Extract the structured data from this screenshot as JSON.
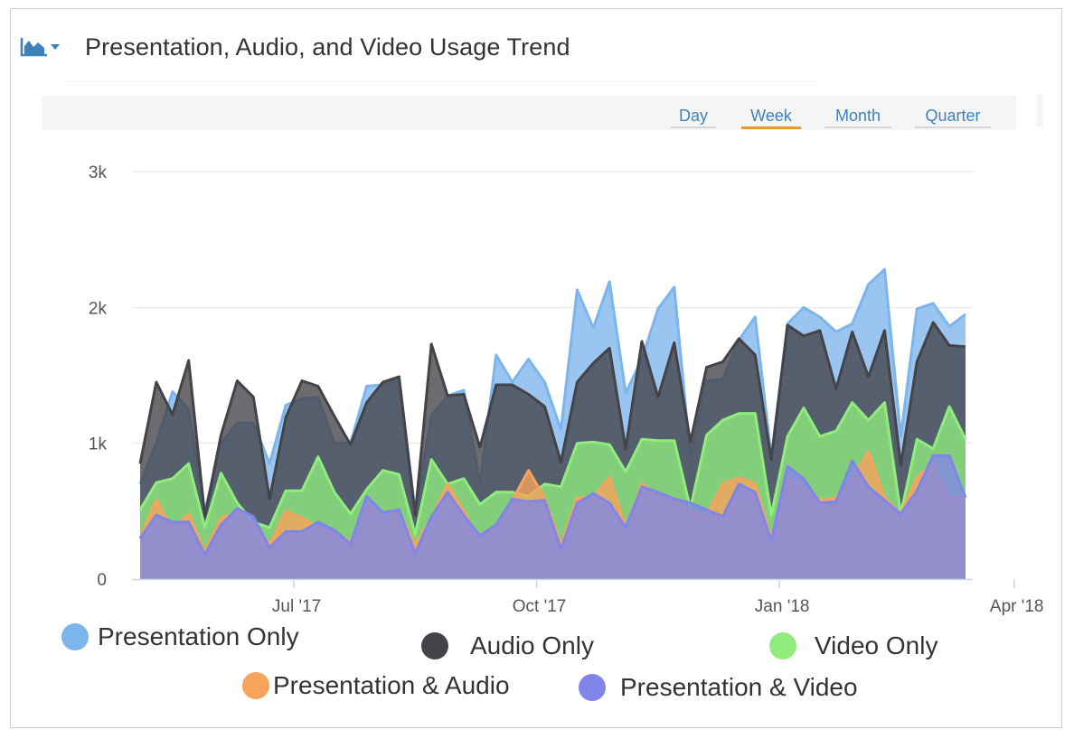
{
  "header": {
    "title": "Presentation, Audio, and Video Usage Trend",
    "icon": "area-chart-icon"
  },
  "ranges": [
    {
      "label": "Day",
      "active": false
    },
    {
      "label": "Week",
      "active": true
    },
    {
      "label": "Month",
      "active": false
    },
    {
      "label": "Quarter",
      "active": false
    }
  ],
  "colors": {
    "presentation_only": "#7cb5ec",
    "audio_only": "#434348",
    "video_only": "#90ed7d",
    "presentation_audio": "#f7a35c",
    "presentation_video": "#8085e9",
    "active_tab": "#f09826",
    "link": "#3d82bd"
  },
  "chart_data": {
    "type": "area",
    "title": "Presentation, Audio, and Video Usage Trend",
    "xlabel": "",
    "ylabel": "",
    "ylim": [
      0,
      3000
    ],
    "y_ticks": [
      {
        "value": 0,
        "label": "0"
      },
      {
        "value": 1000,
        "label": "1k"
      },
      {
        "value": 2000,
        "label": "2k"
      },
      {
        "value": 3000,
        "label": "3k"
      }
    ],
    "x_ticks": [
      {
        "index": 9.5,
        "label": "Jul '17"
      },
      {
        "index": 24.5,
        "label": "Oct '17"
      },
      {
        "index": 39.5,
        "label": "Jan '18"
      },
      {
        "index": 54,
        "label": "Apr '18"
      }
    ],
    "grid": true,
    "legend_position": "bottom",
    "overlapping": true,
    "series": [
      {
        "name": "Presentation Only",
        "color": "#7cb5ec",
        "values": [
          700,
          1000,
          1380,
          1250,
          500,
          1000,
          1150,
          1150,
          850,
          1280,
          1330,
          1340,
          1000,
          1000,
          1420,
          1430,
          1480,
          500,
          1200,
          1350,
          1390,
          700,
          1650,
          1450,
          1620,
          1450,
          1100,
          2130,
          1850,
          2190,
          1370,
          1620,
          1990,
          2150,
          900,
          1460,
          1470,
          1760,
          1930,
          900,
          1880,
          2000,
          1930,
          1820,
          1880,
          2170,
          2280,
          1050,
          1990,
          2030,
          1860,
          1950
        ]
      },
      {
        "name": "Audio Only",
        "color": "#434348",
        "values": [
          850,
          1450,
          1210,
          1610,
          460,
          1060,
          1460,
          1340,
          590,
          1190,
          1460,
          1420,
          1200,
          990,
          1300,
          1450,
          1490,
          470,
          1730,
          1350,
          1360,
          970,
          1430,
          1430,
          1360,
          1270,
          860,
          1450,
          1590,
          1700,
          960,
          1750,
          1340,
          1740,
          1010,
          1560,
          1600,
          1770,
          1650,
          880,
          1870,
          1790,
          1830,
          1400,
          1820,
          1490,
          1830,
          840,
          1600,
          1890,
          1720,
          1710
        ]
      },
      {
        "name": "Video Only",
        "color": "#90ed7d",
        "values": [
          510,
          710,
          740,
          850,
          380,
          780,
          560,
          420,
          380,
          650,
          650,
          900,
          640,
          480,
          660,
          800,
          770,
          330,
          880,
          700,
          740,
          550,
          640,
          640,
          610,
          700,
          680,
          1000,
          1010,
          990,
          790,
          1030,
          1020,
          1020,
          520,
          1060,
          1170,
          1220,
          1220,
          470,
          1050,
          1260,
          1050,
          1090,
          1300,
          1170,
          1300,
          480,
          1030,
          960,
          1270,
          1030
        ]
      },
      {
        "name": "Presentation & Audio",
        "color": "#f7a35c",
        "values": [
          300,
          580,
          370,
          480,
          200,
          450,
          500,
          400,
          250,
          500,
          450,
          380,
          350,
          270,
          560,
          460,
          490,
          250,
          450,
          700,
          500,
          290,
          380,
          580,
          800,
          600,
          250,
          600,
          600,
          750,
          380,
          700,
          620,
          580,
          500,
          470,
          700,
          750,
          700,
          300,
          750,
          680,
          580,
          600,
          740,
          940,
          600,
          480,
          750,
          850,
          600,
          600
        ]
      },
      {
        "name": "Presentation & Video",
        "color": "#8085e9",
        "values": [
          300,
          470,
          420,
          420,
          180,
          400,
          520,
          460,
          230,
          350,
          350,
          420,
          360,
          260,
          610,
          490,
          510,
          190,
          460,
          640,
          470,
          320,
          400,
          590,
          570,
          580,
          220,
          560,
          630,
          560,
          380,
          680,
          640,
          590,
          560,
          510,
          460,
          700,
          640,
          280,
          830,
          740,
          560,
          570,
          870,
          680,
          580,
          480,
          650,
          910,
          910,
          600
        ]
      }
    ]
  },
  "legend": [
    {
      "label": "Presentation Only",
      "color": "#7cb5ec"
    },
    {
      "label": "Audio Only",
      "color": "#434348"
    },
    {
      "label": "Video Only",
      "color": "#90ed7d"
    },
    {
      "label": "Presentation & Audio",
      "color": "#f7a35c"
    },
    {
      "label": "Presentation & Video",
      "color": "#8085e9"
    }
  ]
}
